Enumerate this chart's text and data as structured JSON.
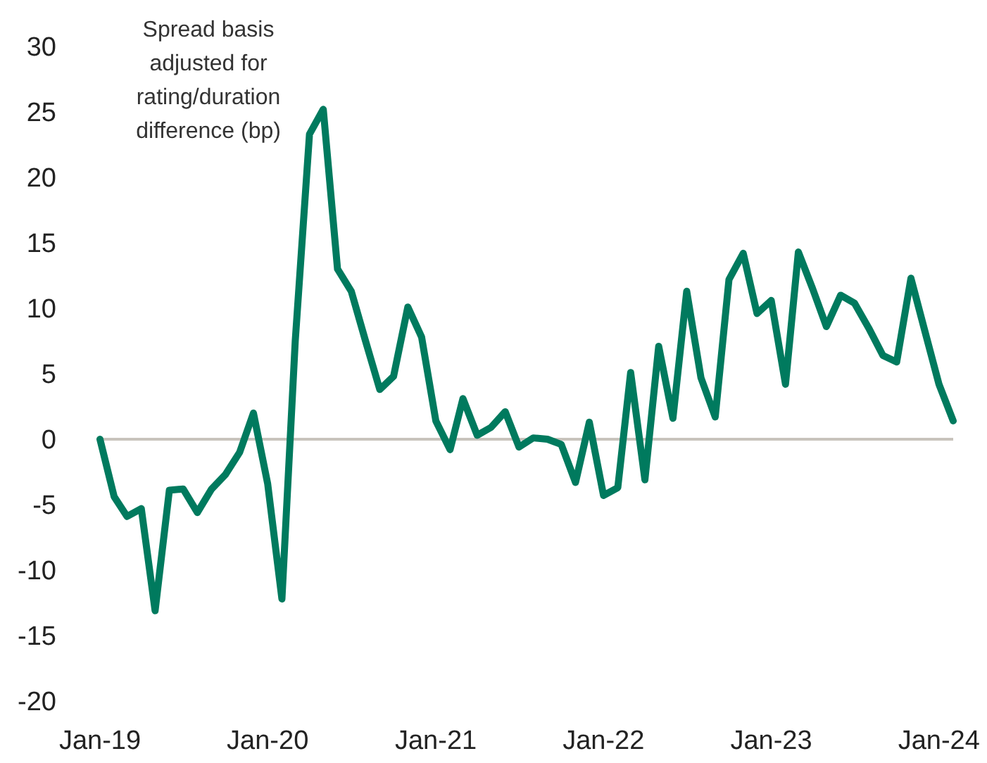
{
  "chart_data": {
    "type": "line",
    "ylabel": "Spread basis adjusted for rating/duration difference (bp)",
    "x": [
      "2019-01",
      "2019-02",
      "2019-03",
      "2019-04",
      "2019-05",
      "2019-06",
      "2019-07",
      "2019-08",
      "2019-09",
      "2019-10",
      "2019-11",
      "2019-12",
      "2020-01",
      "2020-02",
      "2020-03",
      "2020-04",
      "2020-05",
      "2020-06",
      "2020-07",
      "2020-08",
      "2020-09",
      "2020-10",
      "2020-11",
      "2020-12",
      "2021-01",
      "2021-02",
      "2021-03",
      "2021-04",
      "2021-05",
      "2021-06",
      "2021-07",
      "2021-08",
      "2021-09",
      "2021-10",
      "2021-11",
      "2021-12",
      "2022-01",
      "2022-02",
      "2022-03",
      "2022-04",
      "2022-05",
      "2022-06",
      "2022-07",
      "2022-08",
      "2022-09",
      "2022-10",
      "2022-11",
      "2022-12",
      "2023-01",
      "2023-02",
      "2023-03",
      "2023-04",
      "2023-05",
      "2023-06",
      "2023-07",
      "2023-08",
      "2023-09",
      "2023-10",
      "2023-11",
      "2023-12",
      "2024-01",
      "2024-02"
    ],
    "series": [
      {
        "color": "#007a5e",
        "values": [
          0,
          -4.4,
          -5.9,
          -5.3,
          -13.1,
          -3.9,
          -3.8,
          -5.6,
          -3.8,
          -2.7,
          -1.0,
          2.0,
          -3.4,
          -12.2,
          7.5,
          23.3,
          25.2,
          13.0,
          11.3,
          7.5,
          3.8,
          4.8,
          10.1,
          7.8,
          1.4,
          -0.8,
          3.1,
          0.3,
          0.9,
          2.1,
          -0.6,
          0.1,
          0,
          -0.4,
          -3.3,
          1.3,
          -4.3,
          -3.7,
          5.1,
          -3.1,
          7.1,
          1.6,
          11.3,
          4.7,
          1.7,
          12.2,
          14.2,
          9.6,
          10.6,
          4.2,
          14.3,
          11.5,
          8.6,
          11.0,
          10.4,
          8.5,
          6.4,
          5.9,
          12.3,
          8.3,
          4.2,
          1.4
        ]
      }
    ],
    "xlim": [
      "2019-01",
      "2024-02"
    ],
    "xticks": [
      {
        "value": "2019-01",
        "label": "Jan-19"
      },
      {
        "value": "2020-01",
        "label": "Jan-20"
      },
      {
        "value": "2021-01",
        "label": "Jan-21"
      },
      {
        "value": "2022-01",
        "label": "Jan-22"
      },
      {
        "value": "2023-01",
        "label": "Jan-23"
      },
      {
        "value": "2024-01",
        "label": "Jan-24"
      }
    ],
    "ylim": [
      -20,
      30
    ],
    "yticks": [
      -20,
      -15,
      -10,
      -5,
      0,
      5,
      10,
      15,
      20,
      25,
      30
    ],
    "ref_lines": [
      {
        "axis": "y",
        "value": 0,
        "color": "#c8c3bc"
      }
    ],
    "grid": false,
    "marker": "none",
    "line_style": "solid"
  }
}
